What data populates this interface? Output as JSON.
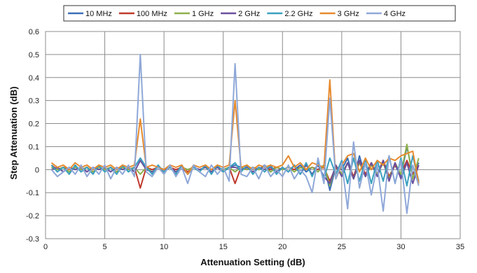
{
  "chart_data": {
    "type": "line",
    "xlabel": "Attenuation Setting (dB)",
    "ylabel": "Step Attenuation (dB)",
    "xlim": [
      0,
      35
    ],
    "ylim": [
      -0.3,
      0.6
    ],
    "xticks": [
      0,
      5,
      10,
      15,
      20,
      25,
      30,
      35
    ],
    "yticks": [
      -0.3,
      -0.2,
      -0.1,
      0,
      0.1,
      0.2,
      0.3,
      0.4,
      0.5,
      0.6
    ],
    "grid": true,
    "legend_position": "top",
    "x": [
      0.5,
      1,
      1.5,
      2,
      2.5,
      3,
      3.5,
      4,
      4.5,
      5,
      5.5,
      6,
      6.5,
      7,
      7.5,
      8,
      8.5,
      9,
      9.5,
      10,
      10.5,
      11,
      11.5,
      12,
      12.5,
      13,
      13.5,
      14,
      14.5,
      15,
      15.5,
      16,
      16.5,
      17,
      17.5,
      18,
      18.5,
      19,
      19.5,
      20,
      20.5,
      21,
      21.5,
      22,
      22.5,
      23,
      23.5,
      24,
      24.5,
      25,
      25.5,
      26,
      26.5,
      27,
      27.5,
      28,
      28.5,
      29,
      29.5,
      30,
      30.5,
      31,
      31.5
    ],
    "series": [
      {
        "name": "10 MHz",
        "color": "#3b6fb6",
        "values": [
          0.01,
          0,
          0.01,
          -0.01,
          0.01,
          0,
          0.01,
          -0.01,
          0.01,
          0,
          0.01,
          -0.01,
          0.01,
          0,
          0.01,
          0.05,
          0.01,
          -0.01,
          0.01,
          0,
          0.01,
          -0.01,
          0.01,
          0,
          0.01,
          0,
          0.01,
          -0.01,
          0.01,
          0,
          0.01,
          0.02,
          0.01,
          0,
          0.01,
          0,
          0.02,
          -0.01,
          0.01,
          0,
          0.01,
          0,
          0.02,
          -0.01,
          0.01,
          0,
          0.02,
          -0.09,
          0.01,
          0,
          0.05,
          -0.04,
          0.06,
          -0.03,
          0.03,
          -0.02,
          0.04,
          -0.03,
          0.02,
          -0.03,
          0.1,
          -0.02,
          0.03
        ]
      },
      {
        "name": "100 MHz",
        "color": "#c0392b",
        "values": [
          0.02,
          0,
          0.01,
          0,
          0.01,
          0,
          0.01,
          -0.01,
          0.01,
          0,
          0.01,
          -0.01,
          0.01,
          0,
          0.01,
          -0.08,
          0.01,
          0,
          0.01,
          -0.01,
          0.01,
          0,
          0.01,
          -0.01,
          0.01,
          0,
          0.01,
          0,
          0.01,
          0,
          0.01,
          -0.06,
          0.01,
          0,
          0.01,
          0,
          0.01,
          0,
          0.01,
          0,
          0.01,
          0,
          0.01,
          0,
          0.01,
          0,
          0.01,
          -0.05,
          0.01,
          -0.02,
          0.03,
          -0.03,
          0.04,
          -0.02,
          0.03,
          -0.02,
          0.04,
          -0.03,
          0.02,
          -0.02,
          0.04,
          -0.02,
          0.02
        ]
      },
      {
        "name": "1 GHz",
        "color": "#8db04a",
        "values": [
          0.01,
          0,
          0.01,
          -0.01,
          0.01,
          0,
          0.01,
          -0.01,
          0.01,
          0,
          0.01,
          -0.01,
          0.01,
          0,
          0.01,
          -0.02,
          0.01,
          -0.01,
          0.01,
          0,
          0.01,
          -0.01,
          0.01,
          0,
          0.01,
          0,
          0.01,
          -0.01,
          0.01,
          0,
          0.01,
          -0.01,
          0.01,
          0,
          0.01,
          0,
          0.01,
          -0.01,
          0.01,
          0,
          0.01,
          -0.01,
          0.01,
          0,
          0.01,
          -0.01,
          0.02,
          -0.07,
          0.02,
          -0.02,
          0.03,
          -0.04,
          0.03,
          -0.03,
          0.02,
          -0.02,
          0.03,
          -0.04,
          0.03,
          -0.02,
          0.11,
          -0.04,
          0.05
        ]
      },
      {
        "name": "2 GHz",
        "color": "#6a4f9e",
        "values": [
          0,
          0.01,
          -0.01,
          0.01,
          0,
          0.01,
          -0.01,
          0.01,
          0,
          0.01,
          -0.01,
          0.01,
          0,
          0.01,
          -0.01,
          0.04,
          0,
          -0.01,
          0.01,
          0,
          0.01,
          -0.01,
          0.01,
          -0.02,
          0.01,
          0,
          0.01,
          -0.01,
          0.01,
          -0.01,
          0.01,
          0.01,
          0,
          0.01,
          -0.01,
          0.01,
          0,
          0.01,
          -0.01,
          0.01,
          -0.01,
          0.02,
          -0.02,
          0.02,
          -0.02,
          0.02,
          -0.03,
          -0.06,
          0.02,
          -0.03,
          0.03,
          -0.04,
          0.04,
          -0.03,
          0.03,
          -0.03,
          0.04,
          -0.05,
          0.03,
          -0.04,
          0.03,
          -0.06,
          0.02
        ]
      },
      {
        "name": "2.2 GHz",
        "color": "#3aa0bf",
        "values": [
          0.02,
          -0.01,
          0.01,
          -0.02,
          0.02,
          -0.01,
          0.01,
          -0.02,
          0.02,
          -0.01,
          0.01,
          -0.02,
          0.02,
          -0.01,
          0.01,
          0.05,
          0.01,
          -0.02,
          0.02,
          -0.01,
          0.01,
          -0.02,
          0.02,
          -0.02,
          0.01,
          -0.01,
          0.02,
          -0.02,
          0.02,
          -0.01,
          0.01,
          0.03,
          -0.01,
          0.02,
          -0.02,
          0.01,
          -0.01,
          0.02,
          -0.02,
          0.01,
          -0.01,
          0.02,
          -0.02,
          0.03,
          -0.03,
          0.03,
          -0.04,
          0.05,
          -0.02,
          0.04,
          -0.06,
          0.05,
          -0.05,
          0.04,
          -0.06,
          0.04,
          -0.05,
          0.06,
          -0.06,
          0.05,
          -0.07,
          0.06,
          -0.05
        ]
      },
      {
        "name": "3 GHz",
        "color": "#e68a2e",
        "values": [
          0.03,
          0.01,
          0.02,
          0,
          0.03,
          0.01,
          0.02,
          0,
          0.02,
          0.01,
          0.02,
          0,
          0.02,
          0.01,
          0.02,
          0.22,
          0.01,
          0.02,
          0.01,
          0,
          0.02,
          0.01,
          0.02,
          -0.02,
          0.02,
          0.01,
          0.02,
          0,
          0.02,
          0.01,
          0.02,
          0.3,
          0.01,
          0.02,
          0,
          0.02,
          0.01,
          0.02,
          0.01,
          0.02,
          0.06,
          0.01,
          0.03,
          0,
          0.03,
          0.02,
          0.01,
          0.39,
          -0.04,
          0.02,
          0.06,
          0.07,
          -0.01,
          0.05,
          0,
          0.04,
          0.02,
          0.05,
          0.04,
          0.06,
          0.07,
          0.08,
          -0.06
        ]
      },
      {
        "name": "4 GHz",
        "color": "#8fa8d8",
        "values": [
          0,
          -0.03,
          -0.01,
          0.01,
          -0.02,
          0.02,
          -0.03,
          0.01,
          -0.02,
          0.02,
          -0.04,
          0.01,
          -0.02,
          0.02,
          -0.03,
          0.5,
          -0.01,
          -0.03,
          0.01,
          -0.02,
          0.02,
          -0.03,
          0.01,
          -0.06,
          0.02,
          -0.01,
          -0.03,
          0.02,
          -0.02,
          0.01,
          -0.05,
          0.46,
          -0.02,
          -0.03,
          0.01,
          -0.04,
          0.02,
          -0.03,
          0,
          -0.03,
          0.02,
          -0.04,
          0,
          -0.03,
          -0.1,
          0.05,
          -0.06,
          0.31,
          -0.04,
          0.03,
          -0.17,
          0.12,
          -0.08,
          0.03,
          -0.11,
          0.02,
          -0.18,
          0.06,
          -0.06,
          0.04,
          -0.19,
          0.02,
          -0.07
        ]
      }
    ]
  }
}
